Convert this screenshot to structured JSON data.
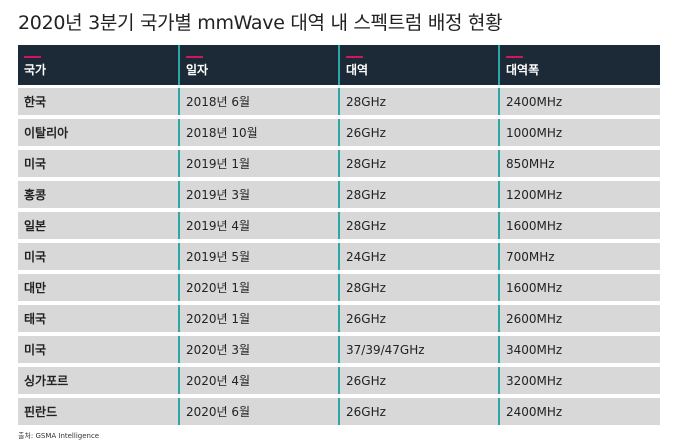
{
  "title": "2020년 3분기 국가별 mmWave 대역 내 스펙트럼 배정 현황",
  "table": {
    "headers": [
      "국가",
      "일자",
      "대역",
      "대역폭"
    ],
    "rows": [
      [
        "한국",
        "2018년 6월",
        "28GHz",
        "2400MHz"
      ],
      [
        "이탈리아",
        "2018년 10월",
        "26GHz",
        "1000MHz"
      ],
      [
        "미국",
        "2019년 1월",
        "28GHz",
        "850MHz"
      ],
      [
        "홍콩",
        "2019년 3월",
        "28GHz",
        "1200MHz"
      ],
      [
        "일본",
        "2019년 4월",
        "28GHz",
        "1600MHz"
      ],
      [
        "미국",
        "2019년 5월",
        "24GHz",
        "700MHz"
      ],
      [
        "대만",
        "2020년 1월",
        "28GHz",
        "1600MHz"
      ],
      [
        "태국",
        "2020년 1월",
        "26GHz",
        "2600MHz"
      ],
      [
        "미국",
        "2020년 3월",
        "37/39/47GHz",
        "3400MHz"
      ],
      [
        "싱가포르",
        "2020년 4월",
        "26GHz",
        "3200MHz"
      ],
      [
        "핀란드",
        "2020년 6월",
        "26GHz",
        "2400MHz"
      ]
    ]
  },
  "source": "출처: GSMA Intelligence",
  "colors": {
    "header_bg": "#1b2a36",
    "header_accent": "#d4145a",
    "row_bg": "#d8d8d8",
    "column_divider": "#2aa8a8"
  }
}
